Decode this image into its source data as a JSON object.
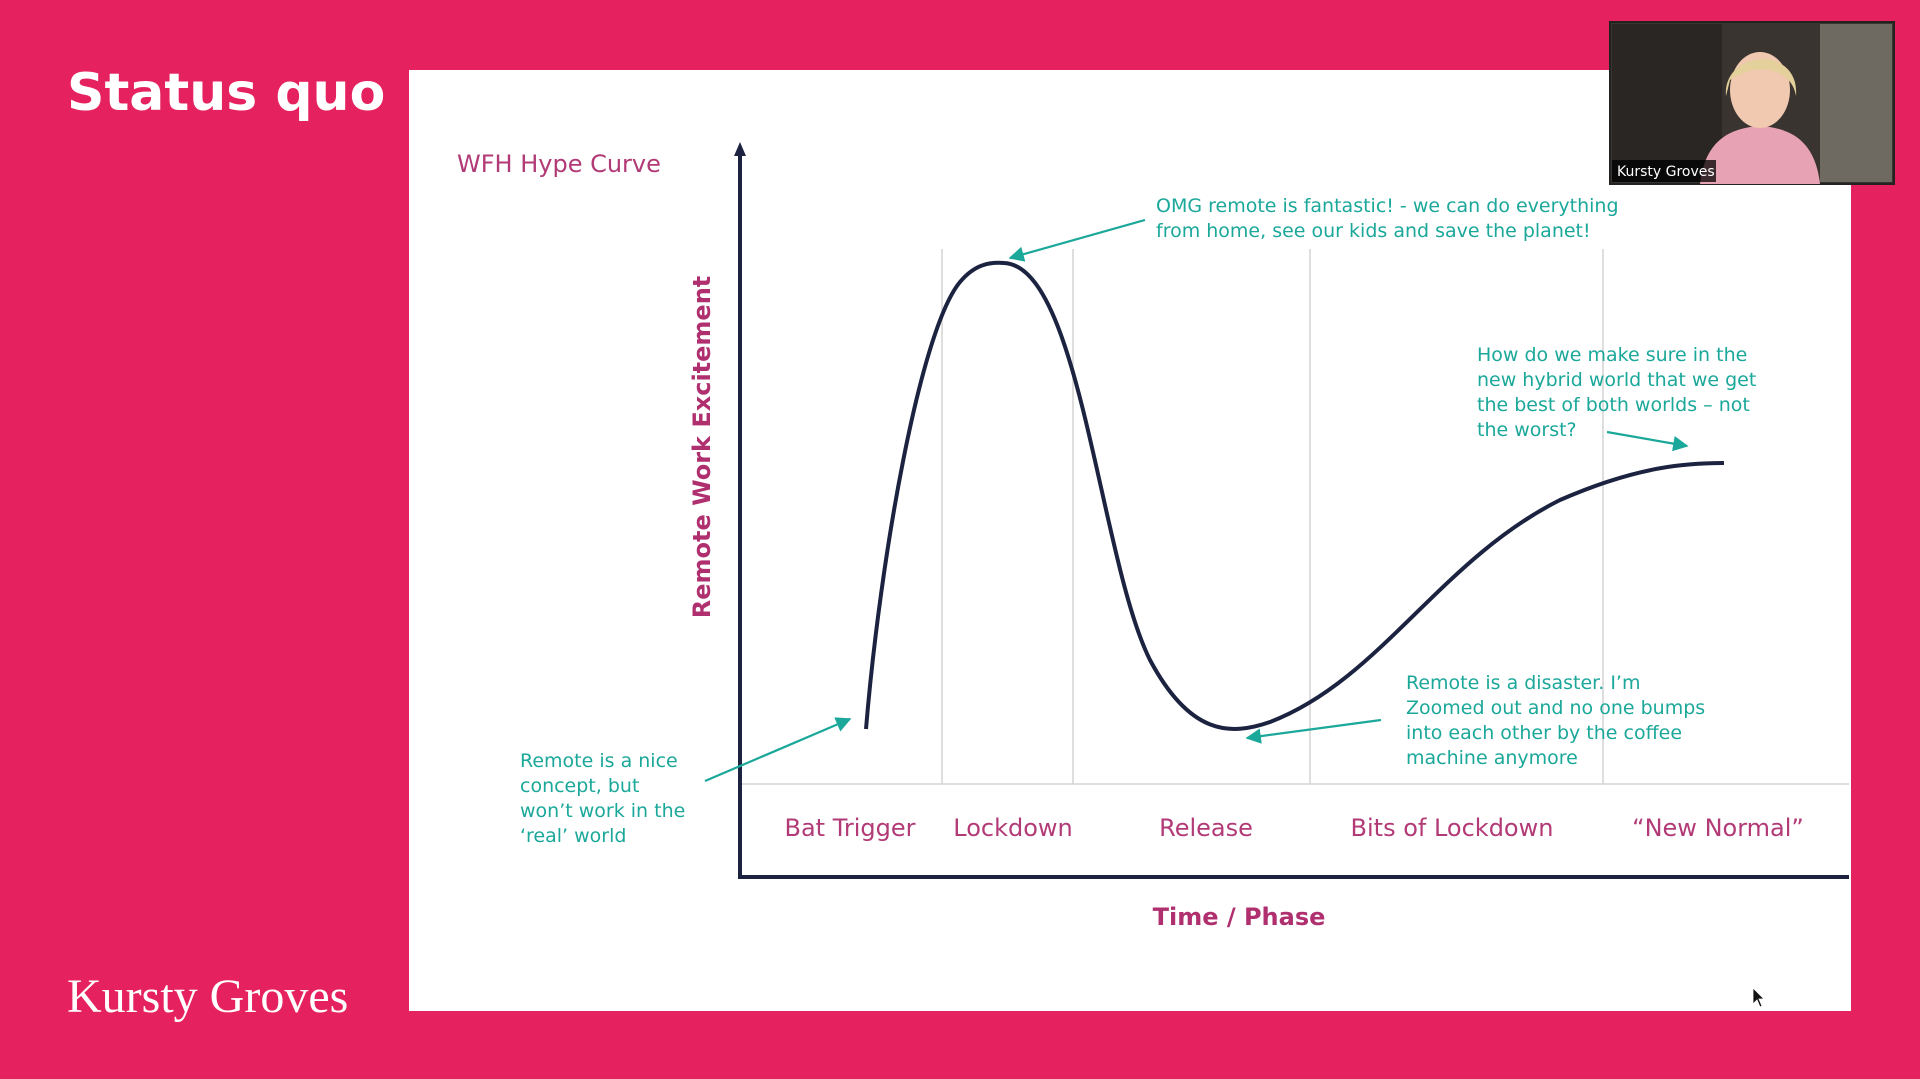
{
  "header": {
    "title": "Status quo"
  },
  "footer": {
    "brand": "Kursty Groves"
  },
  "video_tile": {
    "name": "Kursty Groves"
  },
  "diagram": {
    "title": "WFH Hype Curve",
    "y_label": "Remote Work Excitement",
    "x_label": "Time / Phase",
    "phases": [
      "Bat Trigger",
      "Lockdown",
      "Release",
      "Bits of Lockdown",
      "“New Normal”"
    ],
    "annotations": [
      {
        "lines": [
          "OMG remote is fantastic! - we can do everything",
          "from home, see our kids and save the planet!"
        ]
      },
      {
        "lines": [
          "How do we make sure in the",
          "new hybrid world that we get",
          "the best of both worlds – not",
          "the worst?"
        ]
      },
      {
        "lines": [
          "Remote is a disaster. I’m",
          "Zoomed out and no one bumps",
          "into each other by the coffee",
          "machine anymore"
        ]
      },
      {
        "lines": [
          "Remote is a nice",
          "concept, but",
          "won’t work in the",
          "‘real’ world"
        ]
      }
    ]
  }
}
